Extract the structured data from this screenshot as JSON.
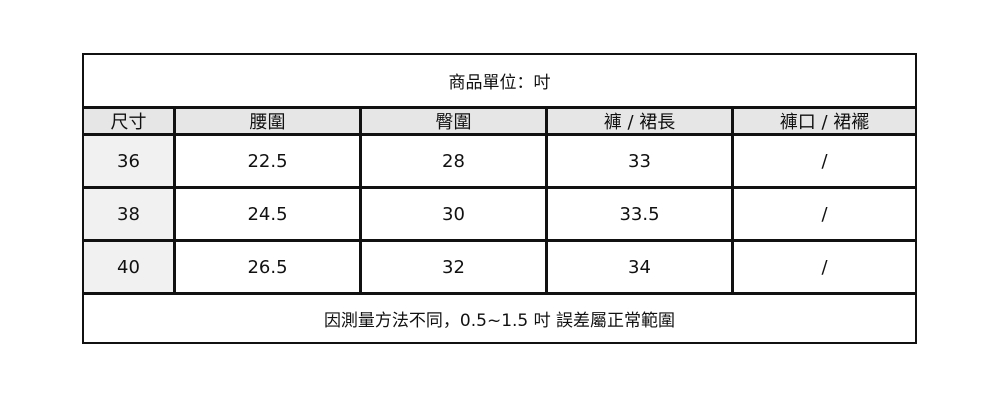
{
  "title": "商品單位：吋",
  "headers": [
    "尺寸",
    "腰圍",
    "臀圍",
    "褲 / 裙長",
    "褲口 / 裙襬"
  ],
  "rows": [
    [
      "36",
      "22.5",
      "28",
      "33",
      "/"
    ],
    [
      "38",
      "24.5",
      "30",
      "33.5",
      "/"
    ],
    [
      "40",
      "26.5",
      "32",
      "34",
      "/"
    ]
  ],
  "footnote": "因測量方法不同，0.5~1.5 吋 誤差屬正常範圍"
}
